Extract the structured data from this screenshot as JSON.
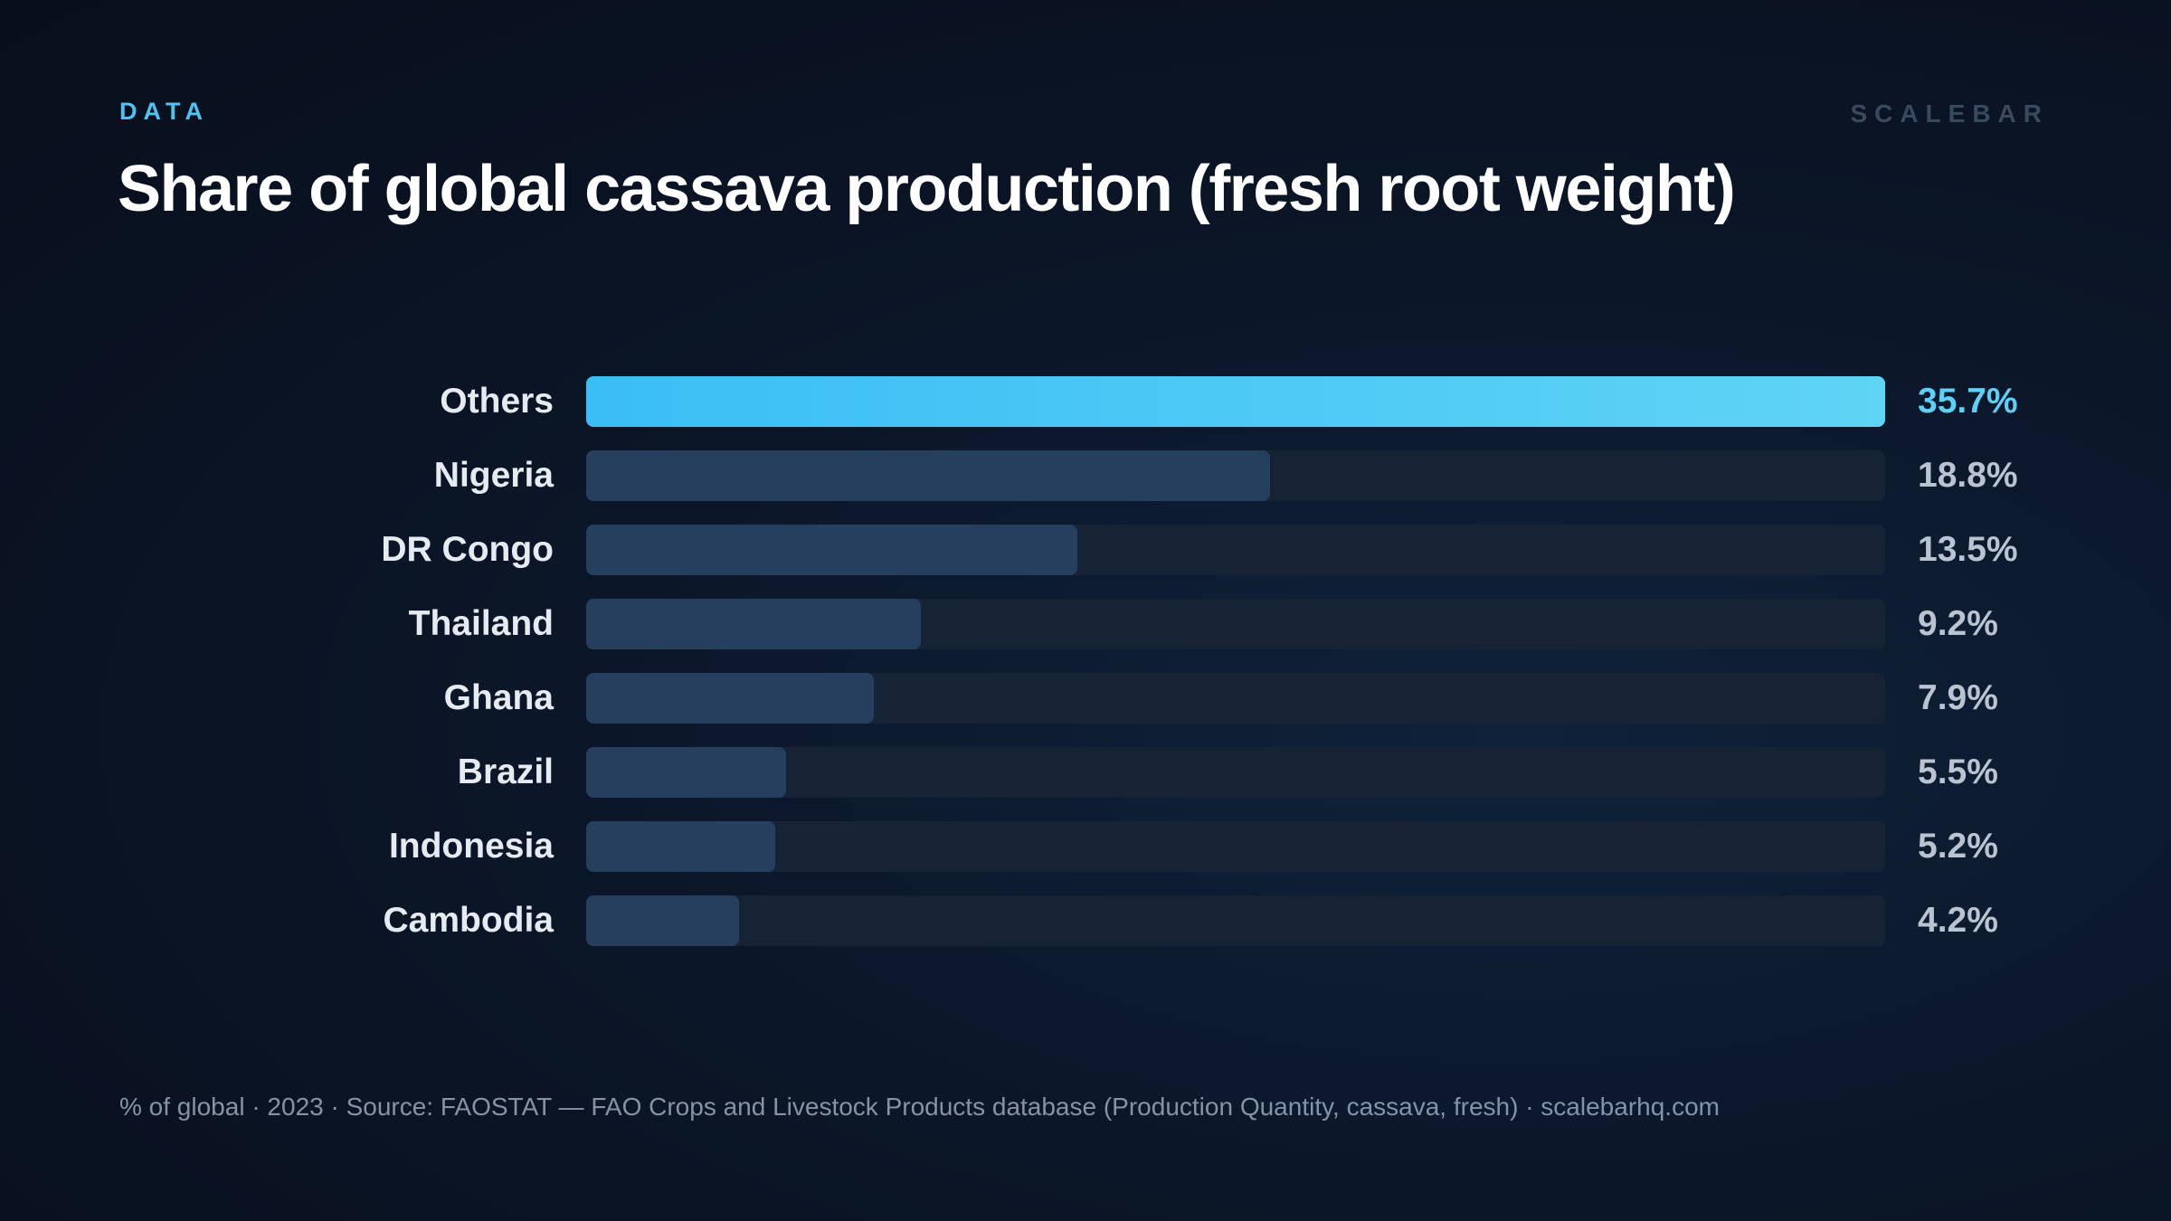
{
  "header": {
    "eyebrow": "DATA",
    "brand": "SCALEBAR"
  },
  "chart_data": {
    "type": "bar",
    "orientation": "horizontal",
    "title": "Share of global cassava production (fresh root weight)",
    "categories": [
      "Others",
      "Nigeria",
      "DR Congo",
      "Thailand",
      "Ghana",
      "Brazil",
      "Indonesia",
      "Cambodia"
    ],
    "values": [
      35.7,
      18.8,
      13.5,
      9.2,
      7.9,
      5.5,
      5.2,
      4.2
    ],
    "value_labels": [
      "35.7%",
      "18.8%",
      "13.5%",
      "9.2%",
      "7.9%",
      "5.5%",
      "5.2%",
      "4.2%"
    ],
    "highlight_index": 0,
    "xlim": [
      0,
      35.7
    ],
    "grid": false,
    "colors": {
      "highlight_start": "#3bbef5",
      "highlight_end": "#5fd4f5",
      "bar": "#263f5e",
      "track": "#162335"
    }
  },
  "footer": {
    "note": "% of global · 2023 · Source: FAOSTAT — FAO Crops and Livestock Products database (Production Quantity, cassava, fresh) · scalebarhq.com"
  }
}
